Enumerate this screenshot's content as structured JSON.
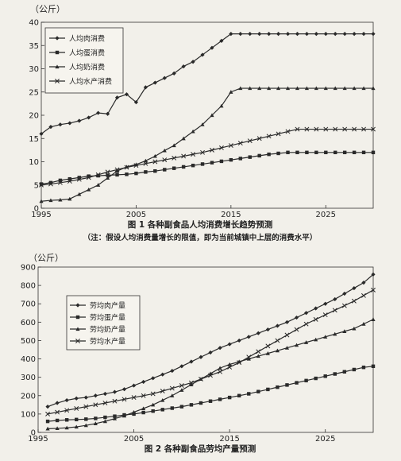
{
  "chart_data": [
    {
      "type": "line",
      "unit_label": "（公斤）",
      "title": "图 1 各种副食品人均消费增长趋势预测",
      "note": "（注：假设人均消费量增长的限值，即为当前城镇中上层的消费水平）",
      "xlim": [
        1995,
        2030
      ],
      "ylim": [
        0,
        40
      ],
      "x_ticks": [
        1995,
        2005,
        2015,
        2025
      ],
      "y_ticks": [
        0,
        5,
        10,
        15,
        20,
        25,
        30,
        35,
        40
      ],
      "grid": false,
      "legend_position": "top-left",
      "x": [
        1995,
        1996,
        1997,
        1998,
        1999,
        2000,
        2001,
        2002,
        2003,
        2004,
        2005,
        2006,
        2007,
        2008,
        2009,
        2010,
        2011,
        2012,
        2013,
        2014,
        2015,
        2016,
        2017,
        2018,
        2019,
        2020,
        2021,
        2022,
        2023,
        2024,
        2025,
        2026,
        2027,
        2028,
        2029,
        2030
      ],
      "series": [
        {
          "name": "人均肉消费",
          "marker": "diamond",
          "values": [
            16,
            17.5,
            18,
            18.3,
            18.8,
            19.5,
            20.5,
            20.3,
            23.8,
            24.5,
            22.8,
            26,
            27,
            28,
            29,
            30.5,
            31.5,
            33,
            34.5,
            36,
            37.5,
            37.5,
            37.5,
            37.5,
            37.5,
            37.5,
            37.5,
            37.5,
            37.5,
            37.5,
            37.5,
            37.5,
            37.5,
            37.5,
            37.5,
            37.5
          ]
        },
        {
          "name": "人均蛋消费",
          "marker": "square",
          "values": [
            5.2,
            5.5,
            6,
            6.3,
            6.6,
            6.9,
            7,
            7.1,
            7.2,
            7.3,
            7.5,
            7.8,
            8,
            8.3,
            8.6,
            8.9,
            9.2,
            9.5,
            9.8,
            10.1,
            10.4,
            10.7,
            11,
            11.3,
            11.6,
            11.8,
            12,
            12,
            12,
            12,
            12,
            12,
            12,
            12,
            12,
            12
          ]
        },
        {
          "name": "人均奶消费",
          "marker": "triangle",
          "values": [
            1.5,
            1.7,
            1.8,
            2,
            3,
            4,
            5,
            6.5,
            8,
            8.9,
            9.4,
            10.2,
            11.2,
            12.4,
            13.5,
            15,
            16.5,
            18,
            20,
            22,
            25,
            25.8,
            25.8,
            25.8,
            25.8,
            25.8,
            25.8,
            25.8,
            25.8,
            25.8,
            25.8,
            25.8,
            25.8,
            25.8,
            25.8,
            25.8
          ]
        },
        {
          "name": "人均水产消费",
          "marker": "cross",
          "values": [
            5,
            5.2,
            5.5,
            5.8,
            6.2,
            6.6,
            7.2,
            7.8,
            8.3,
            8.8,
            9.2,
            9.6,
            10,
            10.4,
            10.8,
            11.2,
            11.6,
            12,
            12.5,
            13,
            13.5,
            14,
            14.5,
            15,
            15.5,
            16,
            16.5,
            17,
            17,
            17,
            17,
            17,
            17,
            17,
            17,
            17
          ]
        }
      ]
    },
    {
      "type": "line",
      "unit_label": "（公斤）",
      "title": "图 2 各种副食品劳均产量预测",
      "xlim": [
        1995,
        2030
      ],
      "ylim": [
        0,
        900
      ],
      "x_ticks": [
        1995,
        2005,
        2015,
        2025
      ],
      "y_ticks": [
        0,
        100,
        200,
        300,
        400,
        500,
        600,
        700,
        800,
        900
      ],
      "grid": false,
      "legend_position": "left",
      "x": [
        1996,
        1997,
        1998,
        1999,
        2000,
        2001,
        2002,
        2003,
        2004,
        2005,
        2006,
        2007,
        2008,
        2009,
        2010,
        2011,
        2012,
        2013,
        2014,
        2015,
        2016,
        2017,
        2018,
        2019,
        2020,
        2021,
        2022,
        2023,
        2024,
        2025,
        2026,
        2027,
        2028,
        2029,
        2030
      ],
      "series": [
        {
          "name": "劳均肉产量",
          "marker": "diamond",
          "values": [
            140,
            160,
            175,
            185,
            190,
            200,
            210,
            220,
            235,
            255,
            275,
            295,
            315,
            335,
            360,
            385,
            410,
            435,
            460,
            480,
            500,
            520,
            540,
            560,
            580,
            600,
            625,
            650,
            675,
            700,
            725,
            755,
            785,
            815,
            860
          ]
        },
        {
          "name": "劳均蛋产量",
          "marker": "square",
          "values": [
            60,
            65,
            68,
            70,
            72,
            76,
            82,
            88,
            95,
            100,
            108,
            116,
            124,
            132,
            140,
            150,
            160,
            170,
            180,
            190,
            200,
            210,
            222,
            234,
            246,
            258,
            270,
            282,
            294,
            306,
            318,
            330,
            342,
            354,
            360
          ]
        },
        {
          "name": "劳均奶产量",
          "marker": "triangle",
          "values": [
            20,
            22,
            25,
            30,
            38,
            48,
            60,
            75,
            90,
            110,
            130,
            150,
            175,
            200,
            230,
            260,
            290,
            320,
            350,
            370,
            385,
            400,
            415,
            430,
            445,
            460,
            475,
            490,
            505,
            520,
            535,
            550,
            565,
            590,
            615
          ]
        },
        {
          "name": "劳均水产量",
          "marker": "cross",
          "values": [
            100,
            110,
            120,
            130,
            140,
            150,
            160,
            170,
            180,
            190,
            200,
            210,
            225,
            240,
            255,
            270,
            290,
            310,
            330,
            355,
            380,
            410,
            440,
            470,
            500,
            530,
            560,
            590,
            615,
            640,
            665,
            690,
            715,
            745,
            775
          ]
        }
      ]
    }
  ]
}
